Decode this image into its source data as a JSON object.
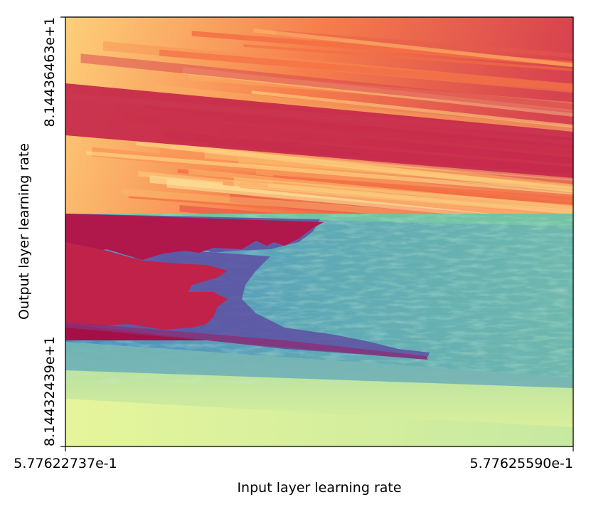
{
  "chart_data": {
    "type": "heatmap",
    "colormap": "Spectral",
    "xlabel": "Input layer learning rate",
    "ylabel": "Output layer learning rate",
    "x_ticks": [
      "5.77622737e-1",
      "5.77625590e-1"
    ],
    "y_ticks": [
      "8.14432439e+1",
      "8.14436463e+1"
    ],
    "regions": [
      {
        "name": "warm-stripes-upper",
        "color_range": [
          "#fee08b",
          "#d53e4f"
        ]
      },
      {
        "name": "red-divergent-band",
        "color_range": [
          "#d53e4f",
          "#9e0142"
        ]
      },
      {
        "name": "blue-convergent-region",
        "color_range": [
          "#3288bd",
          "#abdda4"
        ]
      },
      {
        "name": "green-lower",
        "color_range": [
          "#abdda4",
          "#e6f598"
        ]
      }
    ],
    "grid": false,
    "colorbar": false
  }
}
